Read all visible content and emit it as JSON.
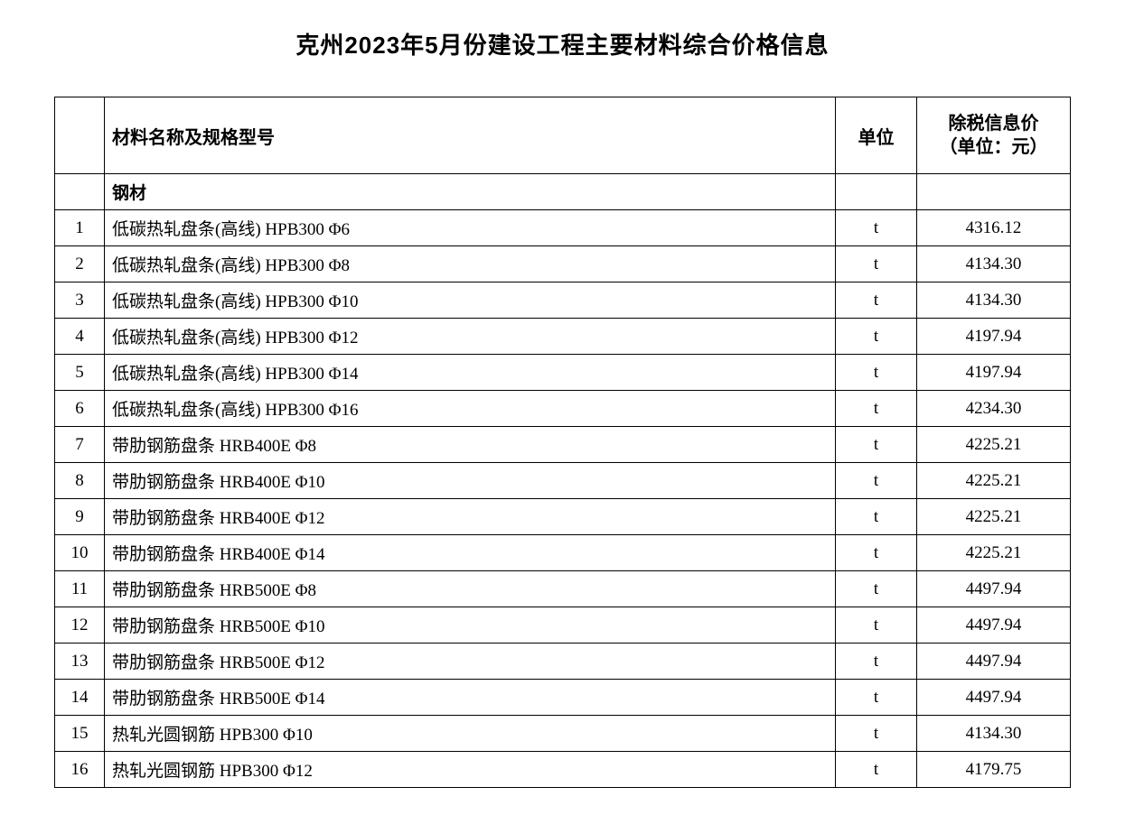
{
  "title": "克州2023年5月份建设工程主要材料综合价格信息",
  "table": {
    "headers": {
      "index": "",
      "name": "材料名称及规格型号",
      "unit": "单位",
      "price_line1": "除税信息价",
      "price_line2": "（单位：元）"
    },
    "category": {
      "name": "钢材"
    },
    "rows": [
      {
        "index": "1",
        "name": "低碳热轧盘条(高线)  HPB300  Φ6",
        "unit": "t",
        "price": "4316.12"
      },
      {
        "index": "2",
        "name": "低碳热轧盘条(高线)  HPB300  Φ8",
        "unit": "t",
        "price": "4134.30"
      },
      {
        "index": "3",
        "name": "低碳热轧盘条(高线)  HPB300  Φ10",
        "unit": "t",
        "price": "4134.30"
      },
      {
        "index": "4",
        "name": "低碳热轧盘条(高线)  HPB300  Φ12",
        "unit": "t",
        "price": "4197.94"
      },
      {
        "index": "5",
        "name": "低碳热轧盘条(高线)  HPB300  Φ14",
        "unit": "t",
        "price": "4197.94"
      },
      {
        "index": "6",
        "name": "低碳热轧盘条(高线)  HPB300  Φ16",
        "unit": "t",
        "price": "4234.30"
      },
      {
        "index": "7",
        "name": "带肋钢筋盘条  HRB400E  Φ8",
        "unit": "t",
        "price": "4225.21"
      },
      {
        "index": "8",
        "name": "带肋钢筋盘条  HRB400E  Φ10",
        "unit": "t",
        "price": "4225.21"
      },
      {
        "index": "9",
        "name": "带肋钢筋盘条  HRB400E  Φ12",
        "unit": "t",
        "price": "4225.21"
      },
      {
        "index": "10",
        "name": "带肋钢筋盘条  HRB400E  Φ14",
        "unit": "t",
        "price": "4225.21"
      },
      {
        "index": "11",
        "name": "带肋钢筋盘条  HRB500E  Φ8",
        "unit": "t",
        "price": "4497.94"
      },
      {
        "index": "12",
        "name": "带肋钢筋盘条  HRB500E  Φ10",
        "unit": "t",
        "price": "4497.94"
      },
      {
        "index": "13",
        "name": "带肋钢筋盘条  HRB500E  Φ12",
        "unit": "t",
        "price": "4497.94"
      },
      {
        "index": "14",
        "name": "带肋钢筋盘条  HRB500E  Φ14",
        "unit": "t",
        "price": "4497.94"
      },
      {
        "index": "15",
        "name": "热轧光圆钢筋  HPB300  Φ10",
        "unit": "t",
        "price": "4134.30"
      },
      {
        "index": "16",
        "name": "热轧光圆钢筋  HPB300  Φ12",
        "unit": "t",
        "price": "4179.75"
      }
    ]
  }
}
